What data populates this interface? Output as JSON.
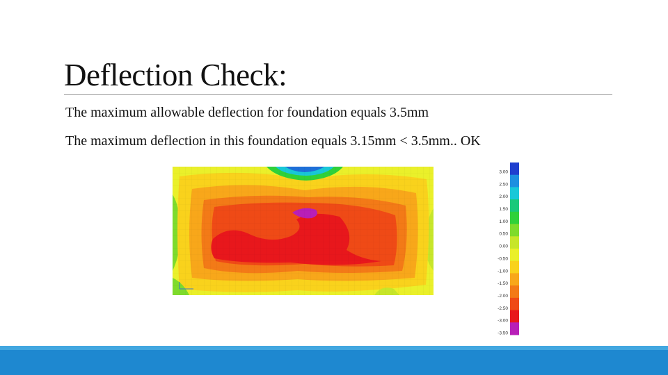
{
  "slide": {
    "title": "Deflection Check:",
    "lines": [
      "The maximum allowable deflection for foundation equals 3.5mm",
      "The maximum deflection in this foundation equals 3.15mm < 3.5mm.. OK"
    ]
  },
  "figure": {
    "legend": {
      "labels": [
        "3.00",
        "2.50",
        "2.00",
        "1.50",
        "1.00",
        "0.50",
        "0.00",
        "-0.50",
        "-1.00",
        "-1.50",
        "-2.00",
        "-2.50",
        "-3.00",
        "-3.50"
      ],
      "colors": [
        "#1f3fcf",
        "#1d8fe0",
        "#18c8d8",
        "#19c97a",
        "#2fd13a",
        "#7edb2c",
        "#c7e62a",
        "#eaf02a",
        "#f9d21c",
        "#f8a71a",
        "#f37a17",
        "#ef4a16",
        "#e8171c",
        "#b81fb8"
      ]
    }
  },
  "colors": {
    "bottom_bar": "#1e88d0",
    "bottom_bar_accent": "#42a7e0"
  }
}
